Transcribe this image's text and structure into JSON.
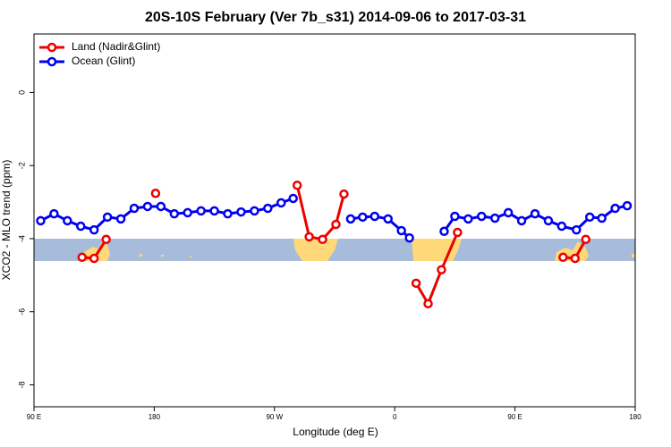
{
  "chart_data": {
    "type": "line",
    "title": "20S-10S February (Ver 7b_s31)   2014-09-06 to 2017-03-31",
    "xlabel": "Longitude (deg E)",
    "ylabel": "XCO2 - MLO trend (ppm)",
    "xlim": [
      90,
      540
    ],
    "xticks": [
      {
        "value": 90,
        "label": "90 E"
      },
      {
        "value": 180,
        "label": "180"
      },
      {
        "value": 270,
        "label": "90 W"
      },
      {
        "value": 360,
        "label": "0"
      },
      {
        "value": 450,
        "label": "90 E"
      },
      {
        "value": 540,
        "label": "180"
      }
    ],
    "ylim": [
      -8.6,
      1.6
    ],
    "yticks": [
      0,
      -2,
      -4,
      -6,
      -8
    ],
    "legend": "upper left",
    "series": [
      {
        "name": "Land (Nadir&Glint)",
        "color": "#ee0000",
        "x": [
          126,
          135,
          144,
          null,
          181,
          null,
          287,
          296,
          306,
          316,
          322,
          null,
          376,
          385,
          395,
          407,
          null,
          486,
          495,
          503
        ],
        "values": [
          -4.51,
          -4.54,
          -4.02,
          null,
          -2.76,
          null,
          -2.54,
          -3.95,
          -4.02,
          -3.61,
          -2.78,
          null,
          -5.22,
          -5.78,
          -4.85,
          -3.83,
          null,
          -4.51,
          -4.54,
          -4.02
        ]
      },
      {
        "name": "Ocean (Glint)",
        "color": "#0000ee",
        "x": [
          95,
          105,
          115,
          125,
          135,
          145,
          155,
          165,
          175,
          185,
          195,
          205,
          215,
          225,
          235,
          245,
          255,
          265,
          275,
          284,
          null,
          327,
          336,
          345,
          355,
          365,
          371,
          null,
          397,
          405,
          415,
          425,
          435,
          445,
          455,
          465,
          475,
          485,
          496,
          506,
          515,
          525,
          534
        ],
        "values": [
          -3.51,
          -3.32,
          -3.51,
          -3.66,
          -3.76,
          -3.41,
          -3.46,
          -3.17,
          -3.12,
          -3.12,
          -3.32,
          -3.29,
          -3.24,
          -3.24,
          -3.32,
          -3.27,
          -3.24,
          -3.17,
          -3.02,
          -2.9,
          null,
          -3.46,
          -3.41,
          -3.39,
          -3.46,
          -3.78,
          -3.98,
          null,
          -3.8,
          -3.39,
          -3.46,
          -3.39,
          -3.44,
          -3.29,
          -3.51,
          -3.32,
          -3.51,
          -3.66,
          -3.76,
          -3.41,
          -3.44,
          -3.17,
          -3.1
        ]
      }
    ]
  }
}
